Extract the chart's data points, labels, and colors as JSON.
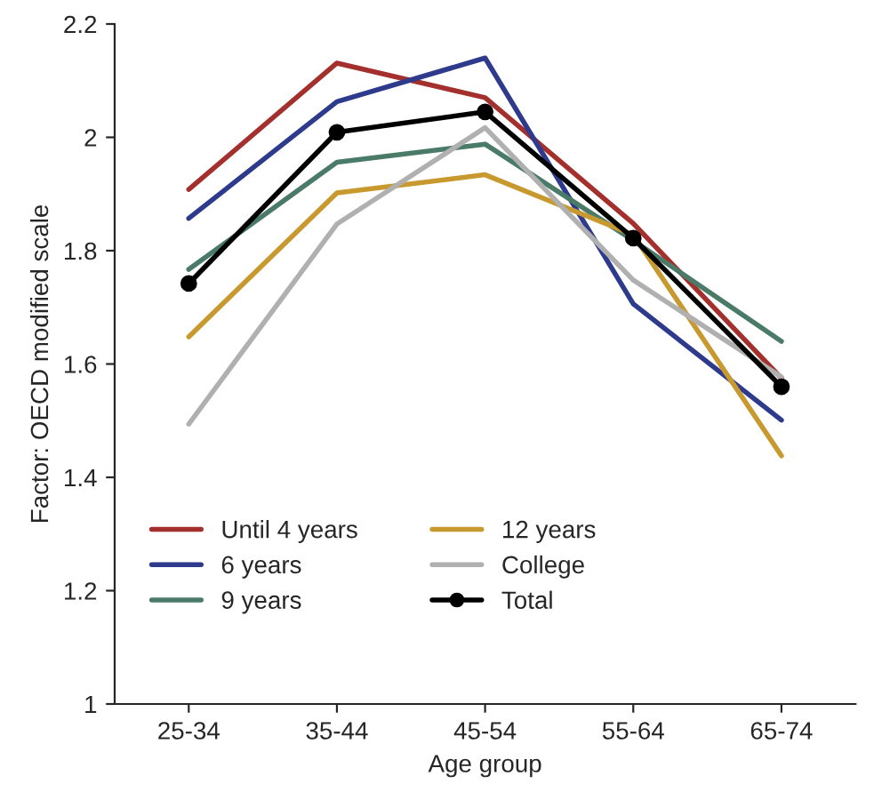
{
  "chart_data": {
    "type": "line",
    "xlabel": "Age group",
    "ylabel": "Factor: OECD modified scale",
    "categories": [
      "25-34",
      "35-44",
      "45-54",
      "55-64",
      "65-74"
    ],
    "series": [
      {
        "name": "Until 4 years",
        "color": "#a3302c",
        "values": [
          1.908,
          2.131,
          2.07,
          1.848,
          1.575
        ]
      },
      {
        "name": "6 years",
        "color": "#2e3a8c",
        "values": [
          1.857,
          2.063,
          2.14,
          1.706,
          1.501
        ]
      },
      {
        "name": "9 years",
        "color": "#4a7a68",
        "values": [
          1.767,
          1.956,
          1.988,
          1.818,
          1.64
        ]
      },
      {
        "name": "12 years",
        "color": "#c8992e",
        "values": [
          1.648,
          1.902,
          1.934,
          1.828,
          1.438
        ]
      },
      {
        "name": "College",
        "color": "#b0b0b0",
        "values": [
          1.494,
          1.847,
          2.017,
          1.748,
          1.577
        ]
      },
      {
        "name": "Total",
        "color": "#000000",
        "marker": "circle",
        "values": [
          1.742,
          2.009,
          2.045,
          1.822,
          1.56
        ]
      }
    ],
    "ylim": [
      1,
      2.2
    ],
    "yticks": [
      1,
      1.2,
      1.4,
      1.6,
      1.8,
      2,
      2.2
    ],
    "grid": false,
    "legend": "bottom left",
    "marker": "none",
    "line_style": "solid"
  }
}
